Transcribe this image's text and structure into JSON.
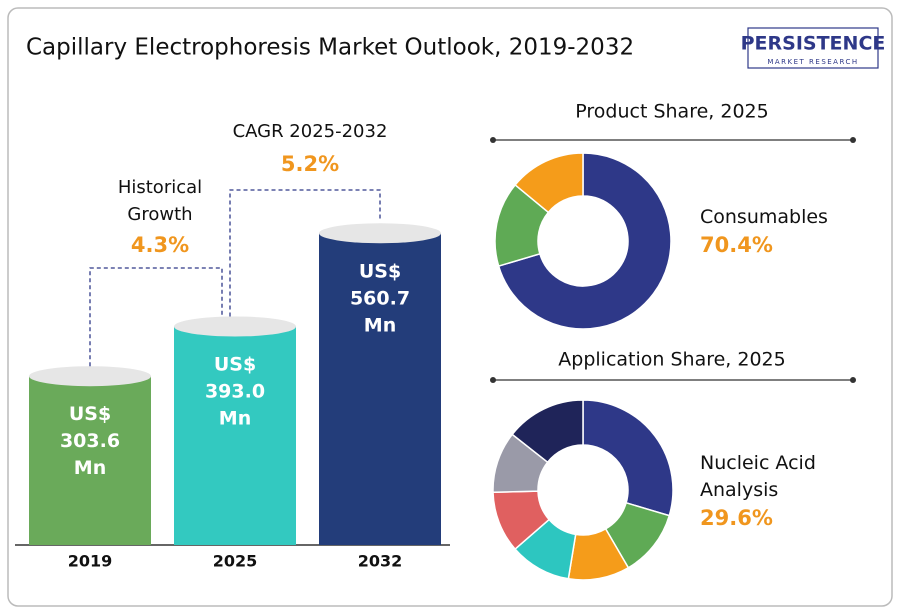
{
  "title": "Capillary Electrophoresis Market Outlook, 2019-2032",
  "logo": {
    "name": "PERSISTENCE",
    "tagline": "MARKET RESEARCH"
  },
  "chart_data": [
    {
      "type": "bar",
      "categories": [
        "2019",
        "2025",
        "2032"
      ],
      "values": [
        303.6,
        393.0,
        560.7
      ],
      "value_labels": [
        "US$ 303.6 Mn",
        "US$ 393.0 Mn",
        "US$ 560.7 Mn"
      ],
      "colors": [
        "#6aaa5a",
        "#33c9c0",
        "#233d7a"
      ],
      "annotations": [
        {
          "text": "Historical Growth",
          "value_label": "4.3%"
        },
        {
          "text": "CAGR 2025-2032",
          "value_label": "5.2%"
        }
      ]
    },
    {
      "type": "donut",
      "title": "Product Share, 2025",
      "categories": [
        "Consumables",
        null,
        null
      ],
      "values": [
        70.4,
        15.6,
        14.0
      ],
      "value_labels": [
        "70.4%",
        null,
        null
      ],
      "colors": [
        "#2e3888",
        "#5faa55",
        "#f59c1a"
      ]
    },
    {
      "type": "donut",
      "title": "Application Share, 2025",
      "categories": [
        "Nucleic Acid Analysis",
        null,
        null,
        null,
        null,
        null,
        null
      ],
      "values": [
        29.6,
        12,
        11,
        11,
        11,
        11,
        14.4
      ],
      "value_labels": [
        "29.6%",
        null,
        null,
        null,
        null,
        null,
        null
      ],
      "colors": [
        "#2e3888",
        "#5faa55",
        "#f59c1a",
        "#2dc6c0",
        "#e06060",
        "#9a9aa8",
        "#1f2459"
      ]
    }
  ]
}
